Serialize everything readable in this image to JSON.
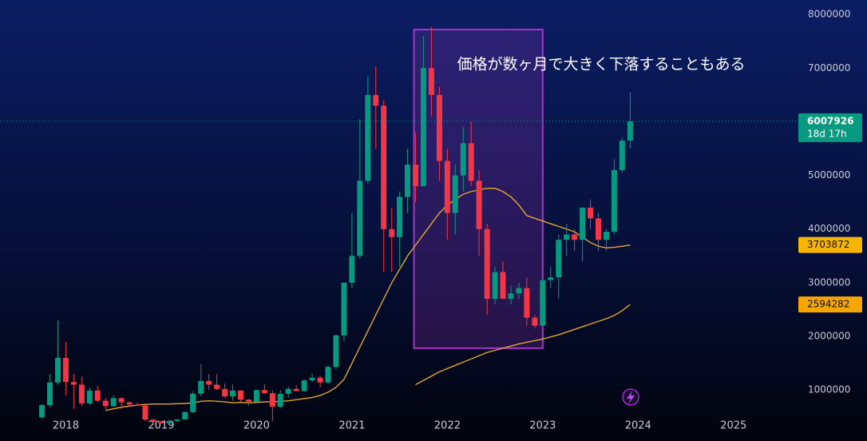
{
  "chart_data": {
    "type": "candlestick",
    "annotation": "価格が数ヶ月で大きく下落することもある",
    "highlight": {
      "x": [
        2021.65,
        2023.0
      ],
      "y": [
        1780000,
        7720000
      ],
      "color": "#a335c9"
    },
    "countdown": "18d 17h",
    "up_color": "#089981",
    "down_color": "#f23645",
    "xlim": [
      2017.31,
      2025.68
    ],
    "xticks": [
      2018,
      2019,
      2020,
      2021,
      2022,
      2023,
      2024,
      2025
    ],
    "ylim": [
      50000,
      8270000
    ],
    "yticks": [
      1000000,
      2000000,
      3000000,
      4000000,
      5000000,
      6000000,
      7000000,
      8000000
    ],
    "x": [
      2017.75,
      2017.833,
      2017.917,
      2018,
      2018.083,
      2018.167,
      2018.25,
      2018.333,
      2018.417,
      2018.5,
      2018.583,
      2018.667,
      2018.75,
      2018.833,
      2018.917,
      2019,
      2019.083,
      2019.167,
      2019.25,
      2019.333,
      2019.417,
      2019.5,
      2019.583,
      2019.667,
      2019.75,
      2019.833,
      2019.917,
      2020,
      2020.083,
      2020.167,
      2020.25,
      2020.333,
      2020.417,
      2020.5,
      2020.583,
      2020.667,
      2020.75,
      2020.833,
      2020.917,
      2021,
      2021.083,
      2021.167,
      2021.25,
      2021.333,
      2021.417,
      2021.5,
      2021.583,
      2021.667,
      2021.75,
      2021.833,
      2021.917,
      2022,
      2022.083,
      2022.167,
      2022.25,
      2022.333,
      2022.417,
      2022.5,
      2022.583,
      2022.667,
      2022.75,
      2022.833,
      2022.917,
      2023,
      2023.083,
      2023.167,
      2023.25,
      2023.333,
      2023.417,
      2023.5,
      2023.583,
      2023.667,
      2023.75,
      2023.833,
      2023.917
    ],
    "open": [
      490000,
      720000,
      1140000,
      1600000,
      1150000,
      1100000,
      750000,
      990000,
      800000,
      700000,
      850000,
      770000,
      730000,
      710000,
      450000,
      410000,
      380000,
      420000,
      450000,
      590000,
      930000,
      1170000,
      1100000,
      1020000,
      880000,
      990000,
      820000,
      780000,
      1000000,
      940000,
      690000,
      930000,
      1020000,
      980000,
      1180000,
      1230000,
      1140000,
      1430000,
      2020000,
      3000000,
      3500000,
      4900000,
      6500000,
      6300000,
      4000000,
      3850000,
      4600000,
      5200000,
      4800000,
      7000000,
      6500000,
      5270000,
      4300000,
      5000000,
      5600000,
      4900000,
      4000000,
      2700000,
      3200000,
      2700000,
      2800000,
      2900000,
      2350000,
      2200000,
      3050000,
      3100000,
      3800000,
      3900000,
      3800000,
      4400000,
      4200000,
      3800000,
      3950000,
      5100000,
      5650000
    ],
    "high": [
      730000,
      1300000,
      2300000,
      1900000,
      1300000,
      1250000,
      1050000,
      1080000,
      850000,
      900000,
      860000,
      790000,
      760000,
      720000,
      450000,
      430000,
      450000,
      460000,
      600000,
      980000,
      1480000,
      1300000,
      1300000,
      1120000,
      1110000,
      1000000,
      830000,
      1010000,
      1110000,
      990000,
      1000000,
      1060000,
      1090000,
      1200000,
      1300000,
      1270000,
      1450000,
      2030000,
      3000000,
      4300000,
      6050000,
      6850000,
      7030000,
      6400000,
      4400000,
      4700000,
      5500000,
      5800000,
      7600000,
      7770000,
      6650000,
      5500000,
      5200000,
      5900000,
      6000000,
      5100000,
      4100000,
      3300000,
      3400000,
      2950000,
      3000000,
      3100000,
      2400000,
      3100000,
      3300000,
      3900000,
      4100000,
      4000000,
      4400000,
      4550000,
      4300000,
      4000000,
      5300000,
      5700000,
      6550000
    ],
    "low": [
      470000,
      680000,
      1100000,
      900000,
      650000,
      700000,
      720000,
      780000,
      640000,
      680000,
      650000,
      700000,
      700000,
      420000,
      350000,
      370000,
      370000,
      410000,
      450000,
      570000,
      880000,
      1000000,
      1000000,
      850000,
      800000,
      770000,
      710000,
      750000,
      930000,
      420000,
      660000,
      860000,
      980000,
      970000,
      1150000,
      1050000,
      1130000,
      1380000,
      1910000,
      2900000,
      3450000,
      4850000,
      5500000,
      3200000,
      3200000,
      3300000,
      4300000,
      4500000,
      4800000,
      6100000,
      4900000,
      3800000,
      3900000,
      4700000,
      4800000,
      3500000,
      2400000,
      2600000,
      2700000,
      2600000,
      2700000,
      2200000,
      2150000,
      2200000,
      2900000,
      2700000,
      3500000,
      3600000,
      3400000,
      4000000,
      3600000,
      3600000,
      3900000,
      5050000,
      5500000
    ],
    "close": [
      720000,
      1140000,
      1600000,
      1150000,
      1100000,
      750000,
      990000,
      800000,
      700000,
      850000,
      770000,
      730000,
      710000,
      450000,
      410000,
      380000,
      420000,
      450000,
      590000,
      930000,
      1170000,
      1100000,
      1020000,
      880000,
      990000,
      820000,
      780000,
      1000000,
      940000,
      690000,
      930000,
      1020000,
      980000,
      1180000,
      1230000,
      1140000,
      1430000,
      2020000,
      3000000,
      3500000,
      4900000,
      6500000,
      6300000,
      4000000,
      3850000,
      4600000,
      5200000,
      4800000,
      7000000,
      6500000,
      5270000,
      4300000,
      5000000,
      5600000,
      4900000,
      4000000,
      2700000,
      3200000,
      2700000,
      2800000,
      2900000,
      2350000,
      2200000,
      3050000,
      3100000,
      3800000,
      3900000,
      3800000,
      4400000,
      4200000,
      3800000,
      3950000,
      5100000,
      5650000,
      6007926
    ],
    "lines": [
      {
        "color": "#e0a82e",
        "label_color": "#f7b500",
        "values": [
          null,
          null,
          null,
          null,
          null,
          null,
          null,
          null,
          620000,
          650000,
          680000,
          700000,
          720000,
          730000,
          740000,
          740000,
          740000,
          745000,
          750000,
          760000,
          790000,
          800000,
          790000,
          780000,
          760000,
          770000,
          760000,
          770000,
          780000,
          780000,
          790000,
          800000,
          820000,
          840000,
          860000,
          900000,
          960000,
          1050000,
          1200000,
          1500000,
          1800000,
          2100000,
          2400000,
          2700000,
          3000000,
          3250000,
          3500000,
          3700000,
          3900000,
          4100000,
          4300000,
          4450000,
          4550000,
          4650000,
          4700000,
          4730000,
          4760000,
          4760000,
          4700000,
          4600000,
          4450000,
          4250000,
          4200000,
          4150000,
          4100000,
          4050000,
          4000000,
          3950000,
          3850000,
          3750000,
          3680000,
          3650000,
          3660000,
          3680000,
          3703872
        ]
      },
      {
        "color": "#e0a82e",
        "label_color": "#f7a600",
        "values": [
          null,
          null,
          null,
          null,
          null,
          null,
          null,
          null,
          null,
          null,
          null,
          null,
          null,
          null,
          null,
          null,
          null,
          null,
          null,
          null,
          null,
          null,
          null,
          null,
          null,
          null,
          null,
          null,
          null,
          null,
          null,
          null,
          null,
          null,
          null,
          null,
          null,
          null,
          null,
          null,
          null,
          null,
          null,
          null,
          null,
          null,
          null,
          1100000,
          1180000,
          1260000,
          1340000,
          1400000,
          1460000,
          1520000,
          1580000,
          1640000,
          1700000,
          1740000,
          1780000,
          1820000,
          1860000,
          1890000,
          1920000,
          1950000,
          1990000,
          2030000,
          2080000,
          2130000,
          2180000,
          2230000,
          2280000,
          2330000,
          2390000,
          2480000,
          2594282
        ]
      }
    ]
  }
}
